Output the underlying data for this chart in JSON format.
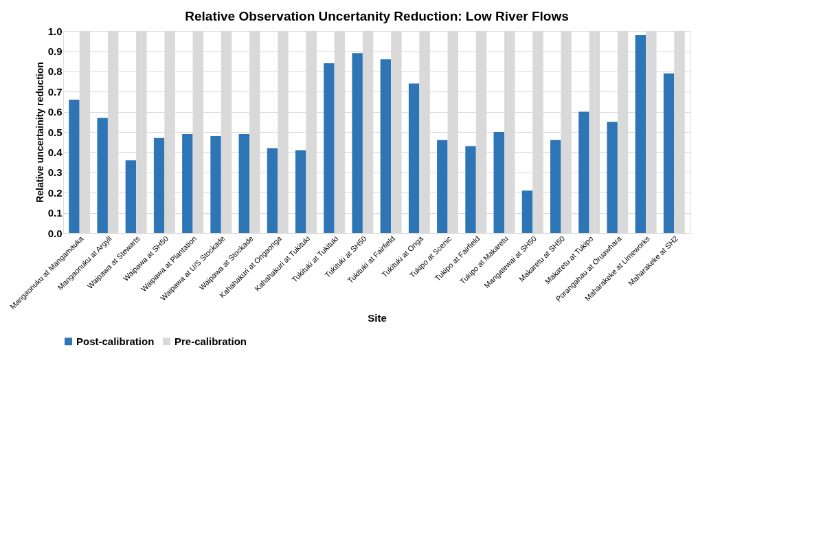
{
  "chart_data": {
    "type": "bar",
    "title": "Relative Observation Uncertanity Reduction: Low River Flows",
    "xlabel": "Site",
    "ylabel": "Relative uncertainity reduction",
    "categories": [
      "Mangaonuku at Mangamauka",
      "Mangaonuku at Argyll",
      "Waipawa at Stewarts",
      "Waipawa at SH50",
      "Waipawa at Plantation",
      "Waipawa at U/S Stockade",
      "Waipawa at Stockade",
      "Kahahakuri at Ongaonga",
      "Kahahakuri at Tukituki",
      "Tukituki at Tukituki",
      "Tukituki at SH50",
      "Tukituki at Fairfield",
      "Tukituki at Onga",
      "Tukipo at Scenic",
      "Tukipo at Fairfield",
      "Tukipo at Makaretu",
      "Mangatewai at SH50",
      "Makaretu at SH50",
      "Makaretu at Tukipo",
      "Porangahau at Oruawhara",
      "Maharakeke at Limeworks",
      "Maharakeke at SH2"
    ],
    "series": [
      {
        "name": "Post-calibration",
        "color": "#2e75b6",
        "values": [
          0.66,
          0.57,
          0.36,
          0.47,
          0.49,
          0.48,
          0.49,
          0.42,
          0.41,
          0.84,
          0.89,
          0.86,
          0.74,
          0.46,
          0.43,
          0.5,
          0.21,
          0.46,
          0.6,
          0.55,
          0.98,
          0.79
        ]
      },
      {
        "name": "Pre-calibration",
        "color": "#d9d9d9",
        "values": [
          1.0,
          1.0,
          1.0,
          1.0,
          1.0,
          1.0,
          1.0,
          1.0,
          1.0,
          1.0,
          1.0,
          1.0,
          1.0,
          1.0,
          1.0,
          1.0,
          1.0,
          1.0,
          1.0,
          1.0,
          1.0,
          1.0
        ]
      }
    ],
    "ylim": [
      0,
      1.0
    ],
    "yticks": [
      {
        "value": 0,
        "label": "0.0"
      },
      {
        "value": 0.1,
        "label": "0.1"
      },
      {
        "value": 0.2,
        "label": "0.2"
      },
      {
        "value": 0.3,
        "label": "0.3"
      },
      {
        "value": 0.4,
        "label": "0.4"
      },
      {
        "value": 0.5,
        "label": "0.5"
      },
      {
        "value": 0.6,
        "label": "0.6"
      },
      {
        "value": 0.7,
        "label": "0.7"
      },
      {
        "value": 0.8,
        "label": "0.8"
      },
      {
        "value": 0.9,
        "label": "0.9"
      },
      {
        "value": 1.0,
        "label": "1.0"
      }
    ],
    "grid": "y",
    "legend": "bottom"
  }
}
